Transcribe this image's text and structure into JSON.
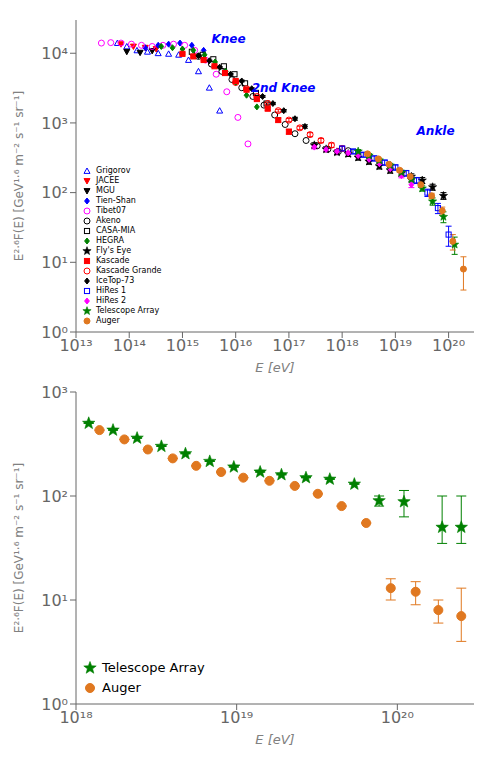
{
  "chart_data": [
    {
      "type": "scatter",
      "xlabel": "E [eV]",
      "ylabel": "E²·⁶F(E) [GeV¹·⁶ m⁻² s⁻¹ sr⁻¹]",
      "log": true,
      "grid": false,
      "legend": "lower left",
      "xlim": [
        10000000000000.0,
        3e+20
      ],
      "ylim": [
        1.0,
        30000.0
      ],
      "xticks": [
        {
          "value": 10000000000000.0,
          "label": "10¹³"
        },
        {
          "value": 100000000000000.0,
          "label": "10¹⁴"
        },
        {
          "value": 1000000000000000.0,
          "label": "10¹⁵"
        },
        {
          "value": 1e+16,
          "label": "10¹⁶"
        },
        {
          "value": 1e+17,
          "label": "10¹⁷"
        },
        {
          "value": 1e+18,
          "label": "10¹⁸"
        },
        {
          "value": 1e+19,
          "label": "10¹⁹"
        },
        {
          "value": 1e+20,
          "label": "10²⁰"
        }
      ],
      "yticks": [
        {
          "value": 1,
          "label": "10⁰"
        },
        {
          "value": 10,
          "label": "10¹"
        },
        {
          "value": 100,
          "label": "10²"
        },
        {
          "value": 1000,
          "label": "10³"
        },
        {
          "value": 10000,
          "label": "10⁴"
        }
      ],
      "series": [
        {
          "name": "Grigorov",
          "color": "blue",
          "marker": "triangle-up-open",
          "x": [
            60000000000000.0,
            90000000000000.0,
            140000000000000.0,
            220000000000000.0,
            350000000000000.0,
            550000000000000.0,
            850000000000000.0,
            1300000000000000.0,
            2000000000000000.0,
            3200000000000000.0,
            5000000000000000.0
          ],
          "values": [
            14000,
            12500,
            11000,
            10500,
            10000,
            9800,
            9500,
            8000,
            5500,
            3200,
            1500
          ]
        },
        {
          "name": "JACEE",
          "color": "red",
          "marker": "triangle-down",
          "x": [
            70000000000000.0,
            120000000000000.0,
            200000000000000.0,
            320000000000000.0
          ],
          "values": [
            13500,
            12500,
            12000,
            11500
          ]
        },
        {
          "name": "MGU",
          "color": "black",
          "marker": "triangle-down",
          "x": [
            90000000000000.0,
            160000000000000.0,
            270000000000000.0
          ],
          "values": [
            10500,
            10200,
            10800
          ]
        },
        {
          "name": "Tien-Shan",
          "color": "blue",
          "marker": "diamond",
          "x": [
            200000000000000.0,
            350000000000000.0,
            550000000000000.0,
            900000000000000.0,
            1500000000000000.0,
            2500000000000000.0
          ],
          "values": [
            12000,
            13000,
            13500,
            14000,
            13000,
            11000
          ]
        },
        {
          "name": "Tibet07",
          "color": "magenta",
          "marker": "circle-open",
          "x": [
            30000000000000.0,
            45000000000000.0,
            70000000000000.0,
            110000000000000.0,
            170000000000000.0,
            270000000000000.0,
            430000000000000.0,
            680000000000000.0,
            1100000000000000.0,
            1700000000000000.0,
            2700000000000000.0,
            4300000000000000.0,
            6800000000000000.0,
            1.1e+16,
            1.7e+16
          ],
          "values": [
            14000,
            14200,
            14000,
            13500,
            13000,
            12500,
            13000,
            13500,
            13000,
            11000,
            8000,
            5000,
            2800,
            1200,
            500
          ]
        },
        {
          "name": "Akeno",
          "color": "black",
          "marker": "circle-open",
          "x": [
            2000000000000000.0,
            3500000000000000.0,
            5500000000000000.0,
            8500000000000000.0,
            1.3e+16,
            2.1e+16,
            3.4e+16,
            5.4e+16,
            8.5e+16,
            1.3e+17,
            2.1e+17,
            3.4e+17,
            5.4e+17,
            8.5e+17,
            1.3e+18
          ],
          "values": [
            9000,
            7000,
            5500,
            4200,
            3200,
            2400,
            1800,
            1300,
            950,
            700,
            560,
            470,
            420,
            390,
            400
          ]
        },
        {
          "name": "CASA-MIA",
          "color": "black",
          "marker": "square-open",
          "x": [
            1500000000000000.0,
            2400000000000000.0,
            3800000000000000.0,
            6000000000000000.0,
            9500000000000000.0,
            1.5e+16,
            2.4e+16,
            3.8e+16
          ],
          "values": [
            10500,
            9500,
            8200,
            6500,
            5000,
            3700,
            2700,
            1900
          ]
        },
        {
          "name": "HEGRA",
          "color": "green",
          "marker": "diamond",
          "x": [
            400000000000000.0,
            650000000000000.0,
            1000000000000000.0,
            1600000000000000.0,
            2600000000000000.0,
            4100000000000000.0,
            6500000000000000.0,
            1e+16,
            1.6e+16,
            2.5e+16
          ],
          "values": [
            12500,
            12000,
            11500,
            11000,
            9500,
            7500,
            5500,
            3800,
            2500,
            1700
          ]
        },
        {
          "name": "Fly's Eye",
          "color": "black",
          "marker": "star",
          "x": [
            3e+17,
            5e+17,
            8e+17,
            1.3e+18,
            2e+18,
            3.2e+18,
            5e+18,
            8e+18,
            1.3e+19,
            2e+19,
            3.2e+19,
            5e+19,
            8e+19
          ],
          "values": [
            480,
            420,
            380,
            360,
            320,
            280,
            240,
            210,
            190,
            170,
            150,
            120,
            90
          ],
          "yerr_low": [
            40,
            35,
            30,
            30,
            28,
            25,
            22,
            20,
            18,
            16,
            15,
            12,
            10
          ],
          "yerr_high": [
            40,
            35,
            30,
            30,
            28,
            25,
            22,
            20,
            18,
            16,
            15,
            12,
            10
          ]
        },
        {
          "name": "Kascade",
          "color": "red",
          "marker": "square",
          "x": [
            1000000000000000.0,
            1600000000000000.0,
            2500000000000000.0,
            4000000000000000.0,
            6300000000000000.0,
            1e+16,
            1.6e+16,
            2.5e+16,
            4e+16,
            6.3e+16,
            1e+17
          ],
          "values": [
            9800,
            9000,
            8000,
            6500,
            5200,
            4000,
            3000,
            2200,
            1600,
            1100,
            750
          ],
          "yerr_low": [
            300,
            250,
            220,
            190,
            160,
            140,
            120,
            100,
            80,
            70,
            60
          ],
          "yerr_high": [
            300,
            250,
            220,
            190,
            160,
            140,
            120,
            100,
            80,
            70,
            60
          ]
        },
        {
          "name": "Kascade Grande",
          "color": "red",
          "marker": "circle-open",
          "x": [
            1e+16,
            1.6e+16,
            2.5e+16,
            4e+16,
            6.3e+16,
            1e+17,
            1.6e+17,
            2.5e+17,
            4e+17,
            6.3e+17,
            1e+18
          ],
          "values": [
            3800,
            3100,
            2400,
            1900,
            1500,
            1100,
            850,
            680,
            560,
            480,
            430
          ],
          "yerr_low": [
            150,
            120,
            100,
            80,
            70,
            60,
            50,
            45,
            40,
            35,
            35
          ],
          "yerr_high": [
            150,
            120,
            100,
            80,
            70,
            60,
            50,
            45,
            40,
            35,
            35
          ]
        },
        {
          "name": "IceTop-73",
          "color": "black",
          "marker": "diamond",
          "x": [
            2000000000000000.0,
            3200000000000000.0,
            5000000000000000.0,
            8000000000000000.0,
            1.3e+16,
            2e+16,
            3.2e+16,
            5e+16,
            8e+16,
            1.3e+17,
            2e+17
          ],
          "values": [
            9200,
            7800,
            6300,
            5000,
            4000,
            3100,
            2400,
            1900,
            1500,
            1150,
            890
          ],
          "yerr_low": [
            200,
            170,
            150,
            130,
            110,
            90,
            80,
            70,
            60,
            55,
            50
          ],
          "yerr_high": [
            200,
            170,
            150,
            130,
            110,
            90,
            80,
            70,
            60,
            55,
            50
          ]
        },
        {
          "name": "HiRes 1",
          "color": "blue",
          "marker": "square-open",
          "x": [
            1e+18,
            1.6e+18,
            2.5e+18,
            4e+18,
            6.3e+18,
            1e+19,
            1.6e+19,
            2.5e+19,
            4e+19,
            6.3e+19,
            1e+20
          ],
          "values": [
            430,
            390,
            350,
            310,
            270,
            230,
            190,
            150,
            100,
            60,
            25
          ],
          "yerr_low": [
            30,
            28,
            25,
            25,
            22,
            20,
            18,
            15,
            12,
            10,
            8
          ],
          "yerr_high": [
            30,
            28,
            25,
            25,
            22,
            20,
            18,
            15,
            12,
            10,
            8
          ]
        },
        {
          "name": "HiRes 2",
          "color": "magenta",
          "marker": "diamond",
          "x": [
            3e+17,
            5e+17,
            8e+17,
            1.3e+18,
            2e+18,
            3.2e+18,
            5e+18,
            8e+18,
            1.3e+19,
            2e+19
          ],
          "values": [
            450,
            415,
            390,
            370,
            340,
            300,
            260,
            220,
            175,
            130
          ],
          "yerr_low": [
            25,
            22,
            20,
            20,
            18,
            16,
            15,
            14,
            12,
            12
          ],
          "yerr_high": [
            25,
            22,
            20,
            20,
            18,
            16,
            15,
            14,
            12,
            12
          ]
        },
        {
          "name": "Telescope Array",
          "color": "green",
          "marker": "star",
          "x": [
            2e+18,
            3.2e+18,
            5e+18,
            8e+18,
            1.3e+19,
            2e+19,
            3.2e+19,
            5e+19,
            8e+19,
            1.3e+20
          ],
          "values": [
            390,
            340,
            290,
            245,
            195,
            155,
            115,
            75,
            45,
            18
          ],
          "yerr_low": [
            25,
            22,
            20,
            18,
            15,
            12,
            10,
            9,
            8,
            5
          ],
          "yerr_high": [
            25,
            22,
            20,
            18,
            15,
            12,
            10,
            9,
            8,
            5
          ]
        },
        {
          "name": "Auger",
          "color": "#E07820",
          "marker": "circle",
          "x": [
            3e+18,
            4.8e+18,
            7.6e+18,
            1.2e+19,
            1.9e+19,
            3e+19,
            4.8e+19,
            7.6e+19,
            1.2e+20,
            1.9e+20
          ],
          "values": [
            360,
            305,
            255,
            210,
            170,
            130,
            90,
            55,
            20,
            8
          ],
          "yerr_low": [
            18,
            15,
            13,
            12,
            10,
            9,
            8,
            7,
            5,
            4
          ],
          "yerr_high": [
            18,
            15,
            13,
            12,
            10,
            9,
            8,
            7,
            5,
            4
          ]
        }
      ],
      "annotations": [
        {
          "text": "Knee",
          "x": 3500000000000000.0,
          "y": 14000.0,
          "color": "blue"
        },
        {
          "text": "2nd Knee",
          "x": 2e+16,
          "y": 2800,
          "color": "blue"
        },
        {
          "text": "Ankle",
          "x": 2.5e+19,
          "y": 680,
          "color": "blue"
        }
      ]
    },
    {
      "type": "scatter",
      "xlabel": "E [eV]",
      "ylabel": "E²·⁶F(E) [GeV¹·⁶ m⁻² s⁻¹ sr⁻¹]",
      "log": true,
      "grid": false,
      "legend": "lower left",
      "xlim": [
        1e+18,
        3e+20
      ],
      "ylim": [
        1.0,
        1000
      ],
      "xticks": [
        {
          "value": 1e+18,
          "label": "10¹⁸"
        },
        {
          "value": 1e+19,
          "label": "10¹⁹"
        },
        {
          "value": 1e+20,
          "label": "10²⁰"
        }
      ],
      "yticks": [
        {
          "value": 1,
          "label": "10⁰"
        },
        {
          "value": 10,
          "label": "10¹"
        },
        {
          "value": 100,
          "label": "10²"
        },
        {
          "value": 1000,
          "label": "10³"
        }
      ],
      "series": [
        {
          "name": "Telescope Array",
          "color": "green",
          "marker": "star",
          "x": [
            1.2e+18,
            1.7e+18,
            2.4e+18,
            3.4e+18,
            4.8e+18,
            6.8e+18,
            9.6e+18,
            1.4e+19,
            1.9e+19,
            2.7e+19,
            3.8e+19,
            5.4e+19,
            7.7e+19,
            1.1e+20,
            1.9e+20,
            2.5e+20
          ],
          "values": [
            500,
            430,
            360,
            300,
            255,
            215,
            190,
            170,
            160,
            150,
            145,
            130,
            90,
            88,
            50,
            50
          ],
          "yerr_low": [
            0,
            0,
            0,
            0,
            0,
            0,
            0,
            0,
            0,
            0,
            0,
            0,
            10,
            25,
            15,
            15
          ],
          "yerr_high": [
            0,
            0,
            0,
            0,
            0,
            0,
            0,
            0,
            0,
            0,
            0,
            0,
            10,
            25,
            50,
            50
          ]
        },
        {
          "name": "Auger",
          "color": "#E07820",
          "marker": "circle",
          "x": [
            1.4e+18,
            2e+18,
            2.8e+18,
            4e+18,
            5.6e+18,
            8e+18,
            1.1e+19,
            1.6e+19,
            2.3e+19,
            3.2e+19,
            4.5e+19,
            6.4e+19,
            9.1e+19,
            1.3e+20,
            1.8e+20,
            2.5e+20
          ],
          "values": [
            430,
            350,
            280,
            230,
            195,
            170,
            150,
            140,
            125,
            105,
            80,
            55,
            13,
            12,
            8,
            7
          ],
          "yerr_low": [
            0,
            0,
            0,
            0,
            0,
            0,
            0,
            0,
            0,
            0,
            0,
            0,
            3,
            3,
            2,
            3
          ],
          "yerr_high": [
            0,
            0,
            0,
            0,
            0,
            0,
            0,
            0,
            0,
            0,
            0,
            0,
            3,
            3,
            2,
            6
          ]
        }
      ]
    }
  ]
}
